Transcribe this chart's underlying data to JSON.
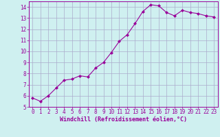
{
  "x": [
    0,
    1,
    2,
    3,
    4,
    5,
    6,
    7,
    8,
    9,
    10,
    11,
    12,
    13,
    14,
    15,
    16,
    17,
    18,
    19,
    20,
    21,
    22,
    23
  ],
  "y": [
    5.8,
    5.5,
    6.0,
    6.7,
    7.4,
    7.5,
    7.8,
    7.7,
    8.5,
    9.0,
    9.9,
    10.9,
    11.5,
    12.5,
    13.6,
    14.2,
    14.1,
    13.5,
    13.2,
    13.7,
    13.5,
    13.4,
    13.2,
    13.1
  ],
  "line_color": "#990099",
  "marker": "D",
  "marker_size": 2,
  "line_width": 0.8,
  "bg_color": "#cff0f0",
  "grid_color": "#aaaacc",
  "xlabel": "Windchill (Refroidissement éolien,°C)",
  "xlabel_color": "#990099",
  "xlabel_fontsize": 6,
  "tick_fontsize": 5.5,
  "xlim": [
    -0.5,
    23.5
  ],
  "ylim": [
    5.0,
    14.5
  ],
  "yticks": [
    5,
    6,
    7,
    8,
    9,
    10,
    11,
    12,
    13,
    14
  ],
  "xticks": [
    0,
    1,
    2,
    3,
    4,
    5,
    6,
    7,
    8,
    9,
    10,
    11,
    12,
    13,
    14,
    15,
    16,
    17,
    18,
    19,
    20,
    21,
    22,
    23
  ],
  "tick_color": "#990099",
  "spine_color": "#990099"
}
